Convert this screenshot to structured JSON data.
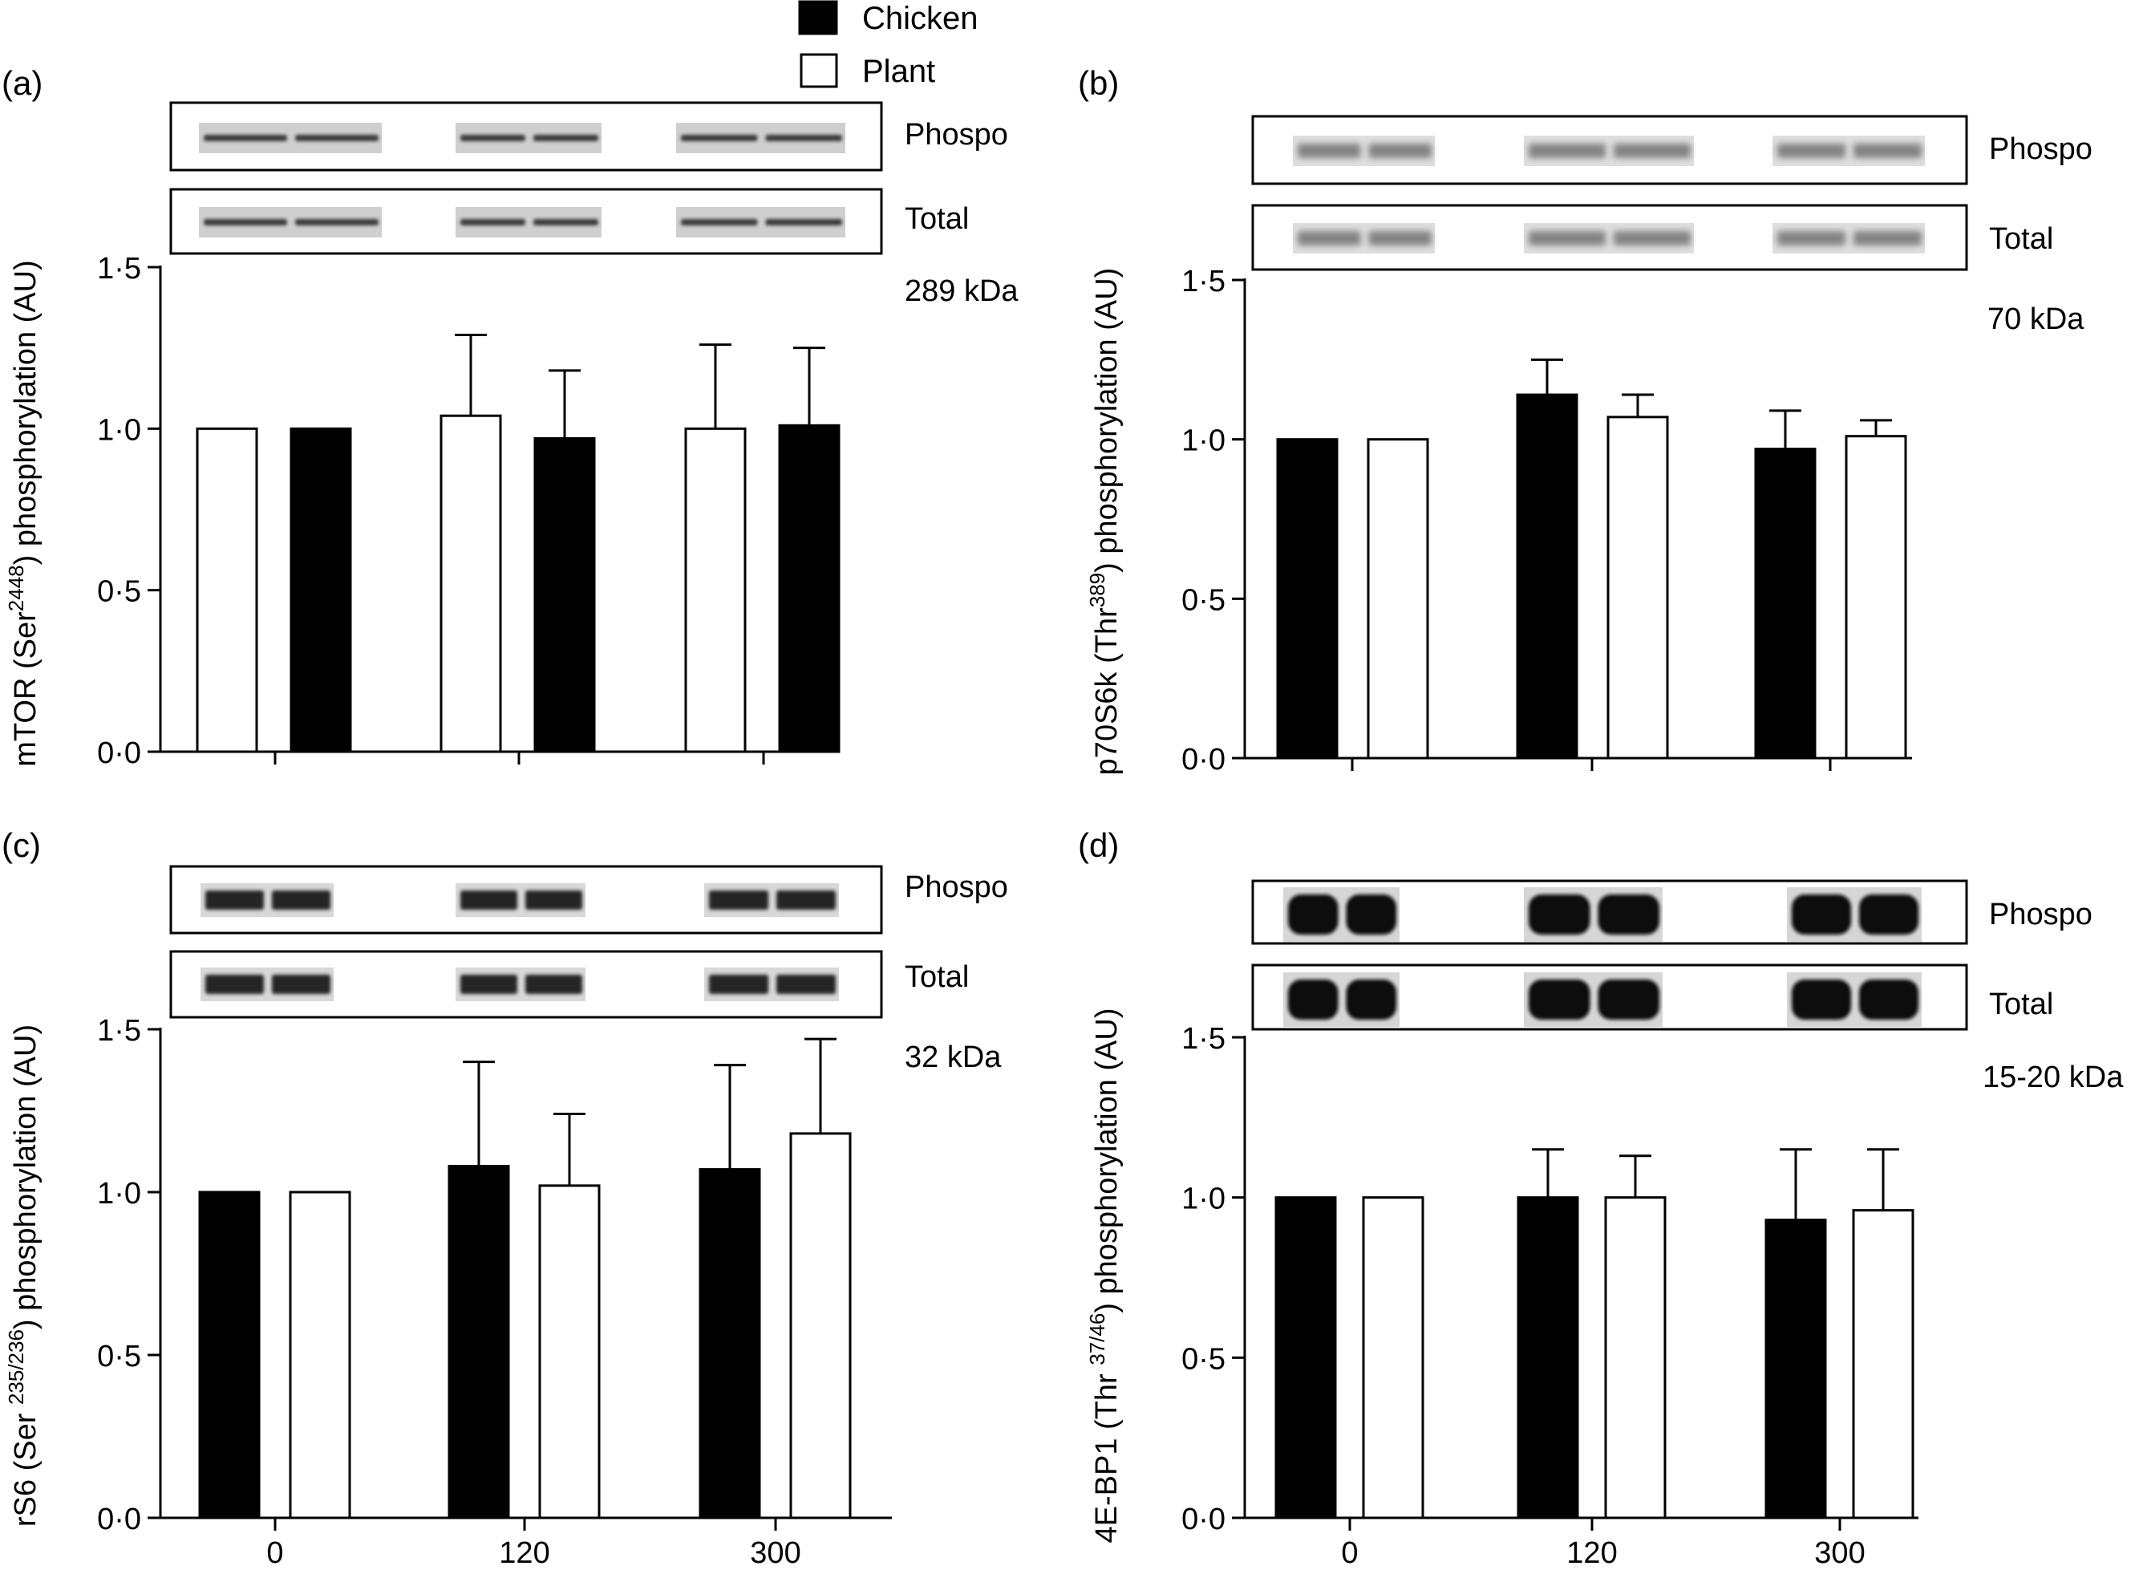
{
  "legend": {
    "items": [
      {
        "label": "Chicken",
        "color": "#000000"
      },
      {
        "label": "Plant",
        "color": "#ffffff"
      }
    ]
  },
  "blot_labels": {
    "phospho": "Phospo",
    "total": "Total"
  },
  "chart_data": [
    {
      "type": "bar",
      "panel_label": "(a)",
      "ylabel": {
        "pre": "mTOR (Ser",
        "sup": "2448",
        "post": ") phosphorylation (AU)"
      },
      "kda_label": "289 kDa",
      "categories": [
        "0",
        "120",
        "300"
      ],
      "show_category_labels": false,
      "yticks": [
        "0·0",
        "0·5",
        "1·0",
        "1·5"
      ],
      "ylim": [
        0,
        1.5
      ],
      "blot_style": "thin",
      "series": [
        {
          "name": "Plant",
          "color": "#ffffff",
          "values": [
            1.0,
            1.04,
            1.0
          ],
          "errors": [
            0,
            0.25,
            0.26
          ]
        },
        {
          "name": "Chicken",
          "color": "#000000",
          "values": [
            1.0,
            0.97,
            1.01
          ],
          "errors": [
            0,
            0.21,
            0.24
          ]
        }
      ]
    },
    {
      "type": "bar",
      "panel_label": "(b)",
      "ylabel": {
        "pre": "p70S6k (Thr",
        "sup": "389",
        "post": ") phosphorylation (AU)"
      },
      "kda_label": "70 kDa",
      "categories": [
        "0",
        "120",
        "300"
      ],
      "show_category_labels": false,
      "yticks": [
        "0·0",
        "0·5",
        "1·0",
        "1·5"
      ],
      "ylim": [
        0,
        1.5
      ],
      "blot_style": "faint",
      "series": [
        {
          "name": "Chicken",
          "color": "#000000",
          "values": [
            1.0,
            1.14,
            0.97
          ],
          "errors": [
            0,
            0.11,
            0.12
          ]
        },
        {
          "name": "Plant",
          "color": "#ffffff",
          "values": [
            1.0,
            1.07,
            1.01
          ],
          "errors": [
            0,
            0.07,
            0.05
          ]
        }
      ]
    },
    {
      "type": "bar",
      "panel_label": "(c)",
      "ylabel": {
        "pre": "rS6 (Ser ",
        "sup": "235/236",
        "post": ") phosphorylation (AU)"
      },
      "kda_label": "32 kDa",
      "categories": [
        "0",
        "120",
        "300"
      ],
      "show_category_labels": true,
      "yticks": [
        "0·0",
        "0·5",
        "1·0",
        "1·5"
      ],
      "ylim": [
        0,
        1.5
      ],
      "blot_style": "medium",
      "series": [
        {
          "name": "Chicken",
          "color": "#000000",
          "values": [
            1.0,
            1.08,
            1.07
          ],
          "errors": [
            0,
            0.32,
            0.32
          ]
        },
        {
          "name": "Plant",
          "color": "#ffffff",
          "values": [
            1.0,
            1.02,
            1.18
          ],
          "errors": [
            0,
            0.22,
            0.29
          ]
        }
      ]
    },
    {
      "type": "bar",
      "panel_label": "(d)",
      "ylabel": {
        "pre": "4E-BP1 (Thr ",
        "sup": "37/46",
        "post": ") phosphorylation (AU)"
      },
      "kda_label": "15-20 kDa",
      "categories": [
        "0",
        "120",
        "300"
      ],
      "show_category_labels": true,
      "yticks": [
        "0·0",
        "0·5",
        "1·0",
        "1·5"
      ],
      "ylim": [
        0,
        1.5
      ],
      "blot_style": "heavy",
      "series": [
        {
          "name": "Chicken",
          "color": "#000000",
          "values": [
            1.0,
            1.0,
            0.93
          ],
          "errors": [
            0,
            0.15,
            0.22
          ]
        },
        {
          "name": "Plant",
          "color": "#ffffff",
          "values": [
            1.0,
            1.0,
            0.96
          ],
          "errors": [
            0,
            0.13,
            0.19
          ]
        }
      ]
    }
  ]
}
